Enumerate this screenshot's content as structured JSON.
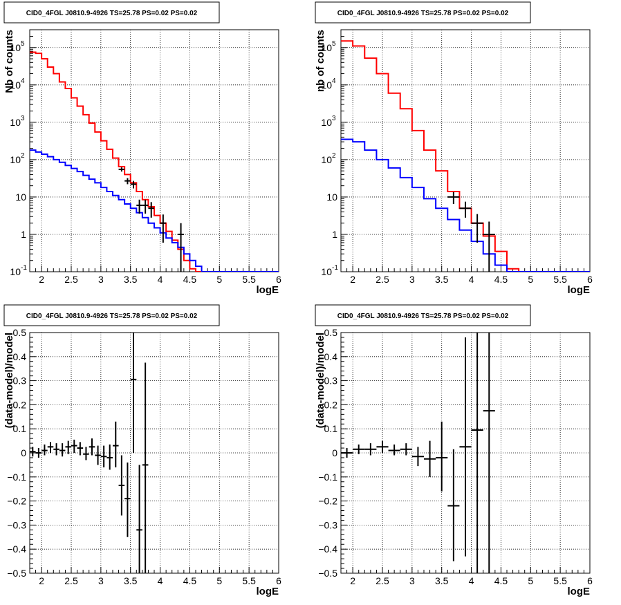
{
  "chart_data": [
    {
      "panel": "top-left",
      "type": "line",
      "title": "CID0_4FGL J0810.9-4926 TS=25.78 PS=0.02 PS=0.02",
      "xlabel": "logE",
      "ylabel": "Nb of counts",
      "xlim": [
        1.8,
        6.0
      ],
      "ylim": [
        0.1,
        300000
      ],
      "yscale": "log",
      "grid": true,
      "x_ticks": [
        "2",
        "2.5",
        "3",
        "3.5",
        "4",
        "4.5",
        "5",
        "5.5",
        "6"
      ],
      "y_tick_labels": {
        "mant": [
          "10",
          "10",
          "10",
          "10",
          "",
          "",
          ""
        ],
        "exp": [
          "5",
          "4",
          "3",
          "2",
          "",
          "",
          ""
        ],
        "plain": [
          "",
          "",
          "",
          "",
          "10",
          "1",
          "10"
        ],
        "plain_exp": [
          "",
          "",
          "",
          "",
          "",
          "",
          "-1"
        ]
      },
      "series": [
        {
          "color": "#ff0000",
          "style": "hist",
          "edges": [
            1.8,
            1.9,
            2.0,
            2.1,
            2.2,
            2.3,
            2.4,
            2.5,
            2.6,
            2.7,
            2.8,
            2.9,
            3.0,
            3.1,
            3.2,
            3.3,
            3.4,
            3.5,
            3.6,
            3.7,
            3.8,
            3.9,
            4.0,
            4.1,
            4.2,
            4.3,
            4.4,
            4.5,
            4.6,
            4.7,
            4.8,
            4.9,
            5.0,
            5.1,
            5.2,
            5.3,
            5.4,
            5.5,
            5.6,
            5.7,
            5.8,
            5.9,
            6.0
          ],
          "values": [
            75000,
            70000,
            50000,
            30000,
            20000,
            12000,
            8000,
            4500,
            2700,
            1600,
            950,
            550,
            320,
            190,
            110,
            65,
            40,
            24,
            14,
            8.5,
            5.5,
            3.2,
            2.0,
            1.2,
            0.7,
            0.4,
            0.2,
            0.12,
            0.1,
            0.1,
            0.1,
            0.1,
            0.1,
            0.1,
            0.1,
            0.1,
            0.1,
            0.1,
            0.1,
            0.1,
            0.1,
            0.1
          ]
        },
        {
          "color": "#0000ff",
          "style": "hist",
          "edges": [
            1.8,
            1.9,
            2.0,
            2.1,
            2.2,
            2.3,
            2.4,
            2.5,
            2.6,
            2.7,
            2.8,
            2.9,
            3.0,
            3.1,
            3.2,
            3.3,
            3.4,
            3.5,
            3.6,
            3.7,
            3.8,
            3.9,
            4.0,
            4.1,
            4.2,
            4.3,
            4.4,
            4.5,
            4.6,
            4.7,
            4.8,
            4.9,
            5.0,
            5.1,
            5.2,
            5.3,
            5.4,
            5.5,
            5.6,
            5.7,
            5.8,
            5.9,
            6.0
          ],
          "values": [
            180,
            160,
            140,
            120,
            100,
            85,
            70,
            58,
            48,
            38,
            30,
            24,
            18,
            14,
            11,
            8.5,
            6.5,
            5.0,
            3.8,
            2.8,
            2.0,
            1.5,
            1.1,
            0.8,
            0.6,
            0.45,
            0.3,
            0.2,
            0.14,
            0.1,
            0.1,
            0.1,
            0.1,
            0.1,
            0.1,
            0.1,
            0.1,
            0.1,
            0.1,
            0.1,
            0.1,
            0.1
          ]
        },
        {
          "color": "#000000",
          "style": "points",
          "points": [
            {
              "x": 3.35,
              "y": 55,
              "ylo": 48,
              "yhi": 62,
              "xerr": 0.05
            },
            {
              "x": 3.45,
              "y": 27,
              "ylo": 22,
              "yhi": 32,
              "xerr": 0.05
            },
            {
              "x": 3.55,
              "y": 22,
              "ylo": 17,
              "yhi": 27,
              "xerr": 0.05
            },
            {
              "x": 3.65,
              "y": 6,
              "ylo": 3.6,
              "yhi": 8.5,
              "xerr": 0.05
            },
            {
              "x": 3.75,
              "y": 6,
              "ylo": 3.6,
              "yhi": 8.5,
              "xerr": 0.05
            },
            {
              "x": 3.85,
              "y": 5,
              "ylo": 2.8,
              "yhi": 7.3,
              "xerr": 0.05
            },
            {
              "x": 4.05,
              "y": 2,
              "ylo": 0.6,
              "yhi": 3.4,
              "xerr": 0.05
            },
            {
              "x": 4.35,
              "y": 1,
              "ylo": 0.1,
              "yhi": 2.0,
              "xerr": 0.05
            }
          ]
        }
      ]
    },
    {
      "panel": "top-right",
      "type": "line",
      "title": "CID0_4FGL J0810.9-4926 TS=25.78 PS=0.02 PS=0.02",
      "xlabel": "logE",
      "ylabel": "nb of counts",
      "xlim": [
        1.8,
        6.0
      ],
      "ylim": [
        0.1,
        300000
      ],
      "yscale": "log",
      "grid": true,
      "x_ticks": [
        "2",
        "2.5",
        "3",
        "3.5",
        "4",
        "4.5",
        "5",
        "5.5",
        "6"
      ],
      "y_tick_labels": {
        "mant": [
          "10",
          "10",
          "10",
          "10",
          "",
          "",
          ""
        ],
        "exp": [
          "5",
          "4",
          "3",
          "2",
          "",
          "",
          ""
        ],
        "plain": [
          "",
          "",
          "",
          "",
          "10",
          "1",
          "10"
        ],
        "plain_exp": [
          "",
          "",
          "",
          "",
          "",
          "",
          "-1"
        ]
      },
      "series": [
        {
          "color": "#ff0000",
          "style": "hist",
          "edges": [
            1.8,
            2.0,
            2.2,
            2.4,
            2.6,
            2.8,
            3.0,
            3.2,
            3.4,
            3.6,
            3.8,
            4.0,
            4.2,
            4.4,
            4.6,
            4.8,
            5.0,
            5.2,
            5.4,
            5.6,
            5.8,
            6.0
          ],
          "values": [
            150000,
            110000,
            52000,
            20000,
            6000,
            2300,
            600,
            180,
            50,
            14,
            5,
            2,
            0.9,
            0.35,
            0.12,
            0.1,
            0.1,
            0.1,
            0.1,
            0.1,
            0.1
          ]
        },
        {
          "color": "#0000ff",
          "style": "hist",
          "edges": [
            1.8,
            2.0,
            2.2,
            2.4,
            2.6,
            2.8,
            3.0,
            3.2,
            3.4,
            3.6,
            3.8,
            4.0,
            4.2,
            4.4,
            4.6,
            4.8,
            5.0,
            5.2,
            5.4,
            5.6,
            5.8,
            6.0
          ],
          "values": [
            350,
            300,
            180,
            100,
            60,
            33,
            18,
            9,
            5,
            2.5,
            1.3,
            0.65,
            0.3,
            0.15,
            0.1,
            0.1,
            0.1,
            0.1,
            0.1,
            0.1,
            0.1
          ]
        },
        {
          "color": "#000000",
          "style": "points",
          "points": [
            {
              "x": 3.7,
              "y": 10,
              "ylo": 6.5,
              "yhi": 13.5,
              "xerr": 0.1
            },
            {
              "x": 3.9,
              "y": 5,
              "ylo": 2.8,
              "yhi": 7.5,
              "xerr": 0.1
            },
            {
              "x": 4.1,
              "y": 2,
              "ylo": 0.6,
              "yhi": 3.5,
              "xerr": 0.1
            },
            {
              "x": 4.3,
              "y": 1,
              "ylo": 0.1,
              "yhi": 2.2,
              "xerr": 0.1
            }
          ]
        }
      ]
    },
    {
      "panel": "bottom-left",
      "type": "scatter",
      "title": "CID0_4FGL J0810.9-4926 TS=25.78 PS=0.02 PS=0.02",
      "xlabel": "logE",
      "ylabel": "(data-model)/model",
      "xlim": [
        1.8,
        6.0
      ],
      "ylim": [
        -0.5,
        0.5
      ],
      "grid": true,
      "x_ticks": [
        "2",
        "2.5",
        "3",
        "3.5",
        "4",
        "4.5",
        "5",
        "5.5",
        "6"
      ],
      "y_ticks": [
        "0.5",
        "0.4",
        "0.3",
        "0.2",
        "0.1",
        "0",
        "−0.1",
        "−0.2",
        "−0.3",
        "−0.4",
        "−0.5"
      ],
      "series": [
        {
          "color": "#000000",
          "style": "points",
          "points": [
            {
              "x": 1.85,
              "y": 0.005,
              "ylo": -0.015,
              "yhi": 0.025,
              "xerr": 0.05
            },
            {
              "x": 1.95,
              "y": 0.0,
              "ylo": -0.02,
              "yhi": 0.02,
              "xerr": 0.05
            },
            {
              "x": 2.05,
              "y": 0.01,
              "ylo": -0.01,
              "yhi": 0.035,
              "xerr": 0.05
            },
            {
              "x": 2.15,
              "y": 0.025,
              "ylo": 0.0,
              "yhi": 0.045,
              "xerr": 0.05
            },
            {
              "x": 2.25,
              "y": 0.015,
              "ylo": -0.01,
              "yhi": 0.04,
              "xerr": 0.05
            },
            {
              "x": 2.35,
              "y": 0.01,
              "ylo": -0.015,
              "yhi": 0.04,
              "xerr": 0.05
            },
            {
              "x": 2.45,
              "y": 0.025,
              "ylo": -0.005,
              "yhi": 0.05,
              "xerr": 0.05
            },
            {
              "x": 2.55,
              "y": 0.03,
              "ylo": 0.0,
              "yhi": 0.055,
              "xerr": 0.05
            },
            {
              "x": 2.65,
              "y": 0.02,
              "ylo": -0.01,
              "yhi": 0.045,
              "xerr": 0.05
            },
            {
              "x": 2.75,
              "y": -0.005,
              "ylo": -0.03,
              "yhi": 0.025,
              "xerr": 0.05
            },
            {
              "x": 2.85,
              "y": 0.025,
              "ylo": -0.01,
              "yhi": 0.06,
              "xerr": 0.05
            },
            {
              "x": 2.95,
              "y": -0.01,
              "ylo": -0.05,
              "yhi": 0.03,
              "xerr": 0.05
            },
            {
              "x": 3.05,
              "y": -0.015,
              "ylo": -0.06,
              "yhi": 0.03,
              "xerr": 0.05
            },
            {
              "x": 3.15,
              "y": -0.02,
              "ylo": -0.07,
              "yhi": 0.035,
              "xerr": 0.05
            },
            {
              "x": 3.25,
              "y": 0.03,
              "ylo": -0.06,
              "yhi": 0.13,
              "xerr": 0.05
            },
            {
              "x": 3.35,
              "y": -0.135,
              "ylo": -0.26,
              "yhi": -0.01,
              "xerr": 0.05
            },
            {
              "x": 3.45,
              "y": -0.19,
              "ylo": -0.35,
              "yhi": -0.04,
              "xerr": 0.05
            },
            {
              "x": 3.55,
              "y": 0.305,
              "ylo": 0.0,
              "yhi": 0.55,
              "xerr": 0.05
            },
            {
              "x": 3.65,
              "y": -0.32,
              "ylo": -0.55,
              "yhi": -0.05,
              "xerr": 0.05
            },
            {
              "x": 3.75,
              "y": -0.05,
              "ylo": -0.55,
              "yhi": 0.375,
              "xerr": 0.05
            }
          ]
        }
      ]
    },
    {
      "panel": "bottom-right",
      "type": "scatter",
      "title": "CID0_4FGL J0810.9-4926 TS=25.78 PS=0.02 PS=0.02",
      "xlabel": "logE",
      "ylabel": "(data-model)/model",
      "xlim": [
        1.8,
        6.0
      ],
      "ylim": [
        -0.5,
        0.5
      ],
      "grid": true,
      "x_ticks": [
        "2",
        "2.5",
        "3",
        "3.5",
        "4",
        "4.5",
        "5",
        "5.5",
        "6"
      ],
      "y_ticks": [
        "0.5",
        "0.4",
        "0.3",
        "0.2",
        "0.1",
        "0",
        "−0.1",
        "−0.2",
        "−0.3",
        "−0.4",
        "−0.5"
      ],
      "series": [
        {
          "color": "#000000",
          "style": "points",
          "points": [
            {
              "x": 1.9,
              "y": 0.0,
              "ylo": -0.02,
              "yhi": 0.02,
              "xerr": 0.1
            },
            {
              "x": 2.1,
              "y": 0.015,
              "ylo": -0.005,
              "yhi": 0.035,
              "xerr": 0.1
            },
            {
              "x": 2.3,
              "y": 0.015,
              "ylo": -0.01,
              "yhi": 0.04,
              "xerr": 0.1
            },
            {
              "x": 2.5,
              "y": 0.025,
              "ylo": 0.0,
              "yhi": 0.05,
              "xerr": 0.1
            },
            {
              "x": 2.7,
              "y": 0.01,
              "ylo": -0.01,
              "yhi": 0.035,
              "xerr": 0.1
            },
            {
              "x": 2.9,
              "y": 0.015,
              "ylo": -0.01,
              "yhi": 0.04,
              "xerr": 0.1
            },
            {
              "x": 3.1,
              "y": -0.015,
              "ylo": -0.055,
              "yhi": 0.025,
              "xerr": 0.1
            },
            {
              "x": 3.3,
              "y": -0.025,
              "ylo": -0.1,
              "yhi": 0.05,
              "xerr": 0.1
            },
            {
              "x": 3.5,
              "y": -0.02,
              "ylo": -0.16,
              "yhi": 0.13,
              "xerr": 0.1
            },
            {
              "x": 3.7,
              "y": -0.22,
              "ylo": -0.45,
              "yhi": 0.015,
              "xerr": 0.1
            },
            {
              "x": 3.9,
              "y": 0.025,
              "ylo": -0.43,
              "yhi": 0.48,
              "xerr": 0.1
            },
            {
              "x": 4.1,
              "y": 0.095,
              "ylo": -0.55,
              "yhi": 0.55,
              "xerr": 0.1
            },
            {
              "x": 4.3,
              "y": 0.175,
              "ylo": -0.55,
              "yhi": 0.55,
              "xerr": 0.1
            }
          ]
        }
      ]
    }
  ]
}
